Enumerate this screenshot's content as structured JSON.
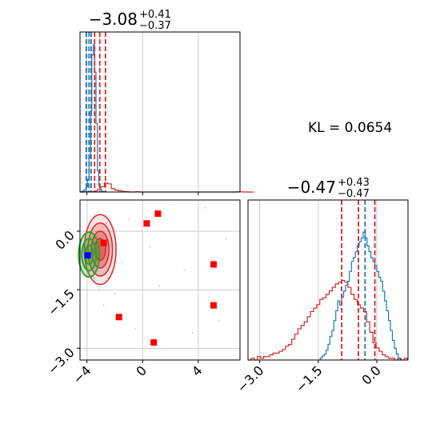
{
  "chart_data": {
    "type": "corner",
    "annotation": "KL = 0.0654",
    "colors": {
      "blue": "#1f77b4",
      "red": "#d62728",
      "green": "#2ca02c",
      "marker_red": "#ff0000",
      "marker_blue": "#0000ff",
      "grid": "#cccccc"
    },
    "param1": {
      "title": {
        "value": "−3.08",
        "upper": "+0.41",
        "lower": "−0.37"
      },
      "range": [
        -4.5,
        7.0
      ],
      "ticks": [
        -4,
        0,
        4
      ],
      "tick_labels": [
        "−4",
        "0",
        "4"
      ],
      "blue_quantiles": [
        -4.05,
        -3.85,
        -3.7
      ],
      "red_quantiles": [
        -3.45,
        -3.08,
        -2.67
      ],
      "blue_hist": {
        "x_start": -4.45,
        "bin_width": 0.1,
        "counts": [
          0.5,
          1,
          2,
          3,
          6,
          15,
          40,
          95,
          160,
          172,
          140,
          80,
          25,
          8,
          3,
          1,
          0.5
        ]
      },
      "red_hist": {
        "x_start": -4.5,
        "bin_width": 0.25,
        "counts": [
          0,
          1,
          1,
          2,
          5,
          12,
          25,
          42,
          38,
          16,
          9,
          6,
          3,
          2,
          0,
          0,
          1,
          0,
          0,
          0,
          0,
          0,
          0,
          0,
          0,
          0,
          0,
          0,
          0,
          0,
          0,
          0,
          0,
          0,
          0,
          0,
          0,
          0,
          0,
          0,
          0,
          0,
          0,
          0,
          0,
          1,
          1,
          0,
          0,
          0
        ]
      }
    },
    "param2": {
      "title": {
        "value": "−0.47",
        "upper": "+0.43",
        "lower": "−0.47"
      },
      "range": [
        -3.3,
        0.8
      ],
      "ticks": [
        -3.0,
        -1.5,
        0.0
      ],
      "tick_labels": [
        "−3.0",
        "−1.5",
        "0.0"
      ],
      "blue_quantiles": [
        -0.85,
        -0.3,
        -0.05
      ],
      "red_quantiles": [
        -0.9,
        -0.47,
        -0.05
      ],
      "blue_hist": {
        "x_start": -1.45,
        "bin_width": 0.05,
        "counts": [
          1,
          2,
          3,
          5,
          8,
          12,
          15,
          20,
          25,
          30,
          28,
          32,
          35,
          38,
          40,
          45,
          50,
          52,
          55,
          58,
          60,
          62,
          65,
          62,
          58,
          55,
          52,
          50,
          48,
          45,
          42,
          40,
          35,
          30,
          25,
          20,
          15,
          10,
          6,
          3,
          1
        ]
      },
      "red_hist": {
        "x_start": -3.3,
        "bin_width": 0.08,
        "counts": [
          0,
          1,
          0,
          2,
          1,
          2,
          2,
          3,
          4,
          4,
          5,
          6,
          8,
          9,
          12,
          15,
          18,
          20,
          22,
          25,
          28,
          30,
          32,
          35,
          36,
          38,
          40,
          42,
          44,
          45,
          46,
          45,
          42,
          38,
          35,
          32,
          30,
          28,
          22,
          16,
          10,
          7,
          5,
          3,
          2,
          1,
          1,
          0,
          1,
          0,
          1
        ]
      }
    },
    "joint": {
      "markers_red": [
        [
          0.3,
          0.2
        ],
        [
          1.1,
          0.45
        ],
        [
          -2.8,
          -0.3
        ],
        [
          5.1,
          -0.85
        ],
        [
          5.1,
          -1.9
        ],
        [
          -1.7,
          -2.2
        ],
        [
          0.8,
          -2.85
        ]
      ],
      "marker_blue": [
        -3.95,
        -0.62
      ],
      "red_center": [
        -3.05,
        -0.47
      ],
      "green_center": [
        -3.85,
        -0.6
      ]
    }
  }
}
